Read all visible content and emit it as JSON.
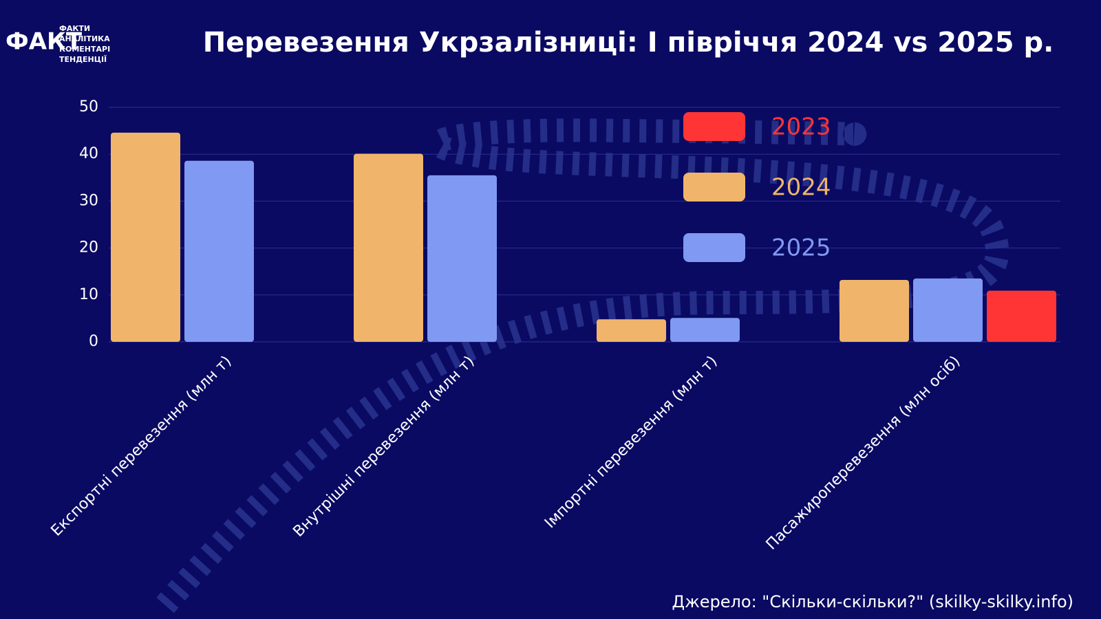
{
  "logo": {
    "mark": "ФАКТ",
    "lines": [
      "ФАКТИ",
      "АНАЛІТИКА",
      "КОМЕНТАРІ",
      "ТЕНДЕНЦІЇ"
    ]
  },
  "chart_data": {
    "type": "bar",
    "title": "Перевезення Укрзалізниці: І півріччя 2024 vs 2025 р.",
    "categories": [
      "Експортні перевезення (млн т)",
      "Внутрішні перевезення (млн т)",
      "Імпортні перевезення (млн т)",
      "Пасажироперевезення (млн осіб)"
    ],
    "series": [
      {
        "name": "2024",
        "color": "#f0b56b",
        "values": [
          44.6,
          40.1,
          4.8,
          13.2
        ]
      },
      {
        "name": "2025",
        "color": "#8099f2",
        "values": [
          38.6,
          35.5,
          5.1,
          13.5
        ]
      },
      {
        "name": "2023",
        "color": "#ff3535",
        "values": [
          null,
          null,
          null,
          10.9
        ]
      }
    ],
    "ylim": [
      0,
      50
    ],
    "yticks": [
      0,
      10,
      20,
      30,
      40,
      50
    ],
    "grid": true,
    "legend": "upper-right",
    "source": "Джерело: \"Скільки-скільки?\" (skilky-skilky.info)"
  }
}
